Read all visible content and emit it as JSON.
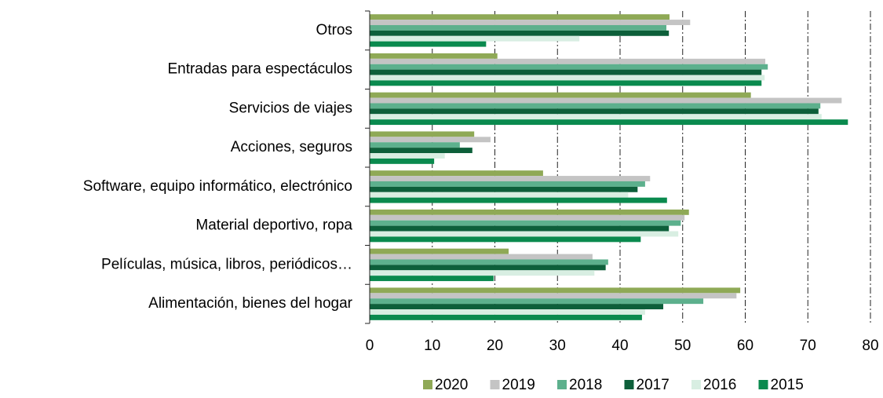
{
  "chart_data": {
    "type": "hbar",
    "categories": [
      "Otros",
      "Entradas para espectáculos",
      "Servicios de viajes",
      "Acciones, seguros",
      "Software, equipo informático, electrónico",
      "Material deportivo, ropa",
      "Películas, música, libros, periódicos…",
      "Alimentación, bienes del hogar"
    ],
    "series": [
      {
        "name": "2020",
        "color": "#8fa956",
        "values": [
          47.9,
          20.4,
          60.9,
          16.7,
          27.7,
          51.0,
          22.2,
          59.2
        ]
      },
      {
        "name": "2019",
        "color": "#c4c4c4",
        "values": [
          51.2,
          63.2,
          75.4,
          19.3,
          44.8,
          50.3,
          35.6,
          58.6
        ]
      },
      {
        "name": "2018",
        "color": "#5db08d",
        "values": [
          47.4,
          63.6,
          72.0,
          14.4,
          44.0,
          49.7,
          38.1,
          53.3
        ]
      },
      {
        "name": "2017",
        "color": "#0d5f3a",
        "values": [
          47.8,
          62.6,
          71.7,
          16.4,
          42.8,
          47.8,
          37.7,
          46.9
        ]
      },
      {
        "name": "2016",
        "color": "#d8eee2",
        "values": [
          33.5,
          63.1,
          72.2,
          12.0,
          41.3,
          49.3,
          35.9,
          44.0
        ]
      },
      {
        "name": "2015",
        "color": "#0a8a4e",
        "values": [
          18.6,
          62.6,
          76.4,
          10.3,
          47.5,
          43.3,
          19.8,
          43.5
        ]
      }
    ],
    "xlim": [
      0,
      80
    ],
    "xticks": [
      0,
      10,
      20,
      30,
      40,
      50,
      60,
      70,
      80
    ],
    "grid": true
  }
}
